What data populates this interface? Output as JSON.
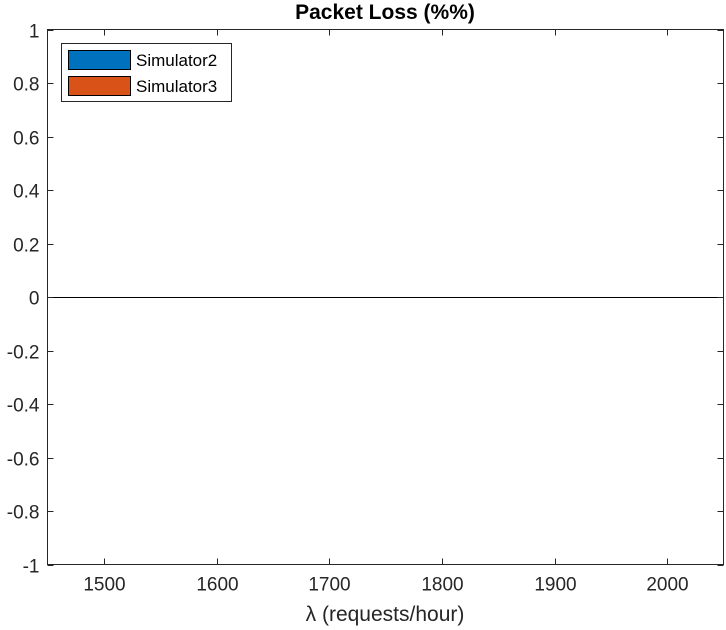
{
  "chart_data": {
    "type": "bar",
    "title": "Packet Loss (%%)",
    "xlabel": "λ (requests/hour)",
    "ylabel": "",
    "xlim": [
      1450,
      2050
    ],
    "ylim": [
      -1,
      1
    ],
    "x": [
      1500,
      1600,
      1700,
      1800,
      1900,
      2000
    ],
    "xticks": [
      "1500",
      "1600",
      "1700",
      "1800",
      "1900",
      "2000"
    ],
    "yticks": [
      "-1",
      "-0.8",
      "-0.6",
      "-0.4",
      "-0.2",
      "0",
      "0.2",
      "0.4",
      "0.6",
      "0.8",
      "1"
    ],
    "series": [
      {
        "name": "Simulator2",
        "color": "#0072BD",
        "values": [
          0,
          0,
          0,
          0,
          0,
          0
        ]
      },
      {
        "name": "Simulator3",
        "color": "#D95319",
        "values": [
          0,
          0,
          0,
          0,
          0,
          0
        ]
      }
    ],
    "legend_position": "top-left",
    "grid": false
  }
}
